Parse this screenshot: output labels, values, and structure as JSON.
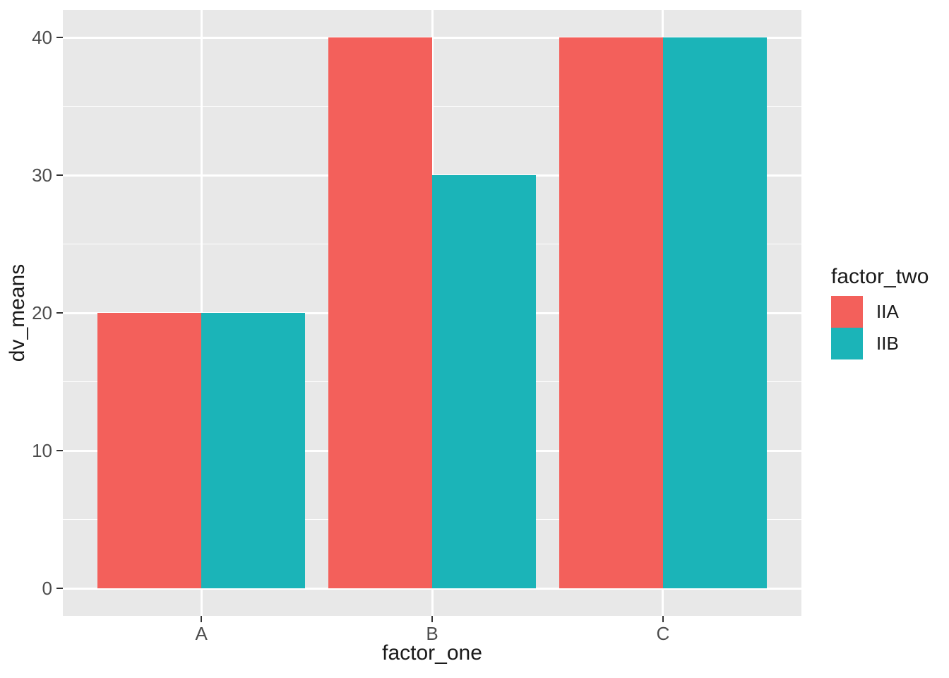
{
  "figure": {
    "background": "#ffffff",
    "panel_background": "#e8e8e8",
    "gridline_color": "#ffffff",
    "tick_mark_color": "#333333",
    "tick_label_color": "#4d4d4d",
    "axis_title_color": "#1a1a1a"
  },
  "chart_data": {
    "type": "bar",
    "subtype": "grouped-dodged",
    "title": "",
    "xlabel": "factor_one",
    "ylabel": "dv_means",
    "categories": [
      "A",
      "B",
      "C"
    ],
    "series": [
      {
        "name": "IIA",
        "color": "#F3605B",
        "values": [
          20,
          40,
          40
        ]
      },
      {
        "name": "IIB",
        "color": "#1BB4B8",
        "values": [
          20,
          30,
          40
        ]
      }
    ],
    "ylim": [
      0,
      40
    ],
    "yticks": [
      0,
      10,
      20,
      30,
      40
    ],
    "yticks_minor": [
      5,
      15,
      25,
      35
    ],
    "grid": "on",
    "legend": {
      "title": "factor_two",
      "position": "right",
      "entries": [
        "IIA",
        "IIB"
      ]
    }
  }
}
